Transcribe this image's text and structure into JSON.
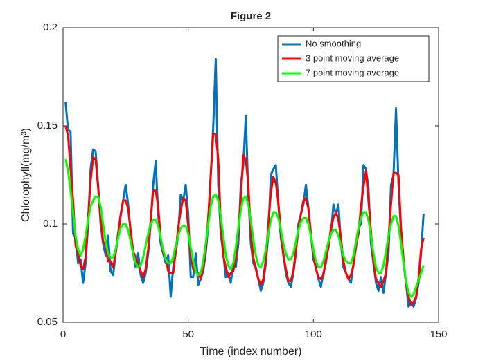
{
  "chart_data": {
    "type": "line",
    "title": "Figure 2",
    "xlabel": "Time (index number)",
    "ylabel": "Chlorophyll(mg/m³)",
    "xlim": [
      0,
      150
    ],
    "xticks": [
      0,
      50,
      100,
      150
    ],
    "ylim": [
      0.05,
      0.2
    ],
    "yticks": [
      0.05,
      0.1,
      0.15,
      0.2
    ],
    "grid": false,
    "legend_position": "top-right",
    "x": [
      1,
      2,
      3,
      4,
      5,
      6,
      7,
      8,
      9,
      10,
      11,
      12,
      13,
      14,
      15,
      16,
      17,
      18,
      19,
      20,
      21,
      22,
      23,
      24,
      25,
      26,
      27,
      28,
      29,
      30,
      31,
      32,
      33,
      34,
      35,
      36,
      37,
      38,
      39,
      40,
      41,
      42,
      43,
      44,
      45,
      46,
      47,
      48,
      49,
      50,
      51,
      52,
      53,
      54,
      55,
      56,
      57,
      58,
      59,
      60,
      61,
      62,
      63,
      64,
      65,
      66,
      67,
      68,
      69,
      70,
      71,
      72,
      73,
      74,
      75,
      76,
      77,
      78,
      79,
      80,
      81,
      82,
      83,
      84,
      85,
      86,
      87,
      88,
      89,
      90,
      91,
      92,
      93,
      94,
      95,
      96,
      97,
      98,
      99,
      100,
      101,
      102,
      103,
      104,
      105,
      106,
      107,
      108,
      109,
      110,
      111,
      112,
      113,
      114,
      115,
      116,
      117,
      118,
      119,
      120,
      121,
      122,
      123,
      124,
      125,
      126,
      127,
      128,
      129,
      130,
      131,
      132,
      133,
      134,
      135,
      136,
      137,
      138,
      139,
      140,
      141,
      142,
      143,
      144
    ],
    "series": [
      {
        "name": "No smoothing",
        "color": "#0072bd",
        "values": [
          0.162,
          0.148,
          0.147,
          0.095,
          0.093,
          0.08,
          0.082,
          0.07,
          0.08,
          0.1,
          0.128,
          0.138,
          0.137,
          0.12,
          0.1,
          0.09,
          0.084,
          0.094,
          0.076,
          0.074,
          0.085,
          0.095,
          0.105,
          0.112,
          0.12,
          0.11,
          0.095,
          0.085,
          0.078,
          0.085,
          0.074,
          0.07,
          0.075,
          0.085,
          0.1,
          0.12,
          0.132,
          0.105,
          0.09,
          0.085,
          0.08,
          0.084,
          0.063,
          0.078,
          0.085,
          0.095,
          0.115,
          0.112,
          0.12,
          0.105,
          0.073,
          0.073,
          0.085,
          0.069,
          0.072,
          0.076,
          0.085,
          0.1,
          0.125,
          0.15,
          0.184,
          0.12,
          0.095,
          0.085,
          0.073,
          0.075,
          0.07,
          0.08,
          0.078,
          0.09,
          0.12,
          0.13,
          0.155,
          0.115,
          0.09,
          0.08,
          0.078,
          0.072,
          0.066,
          0.07,
          0.08,
          0.095,
          0.125,
          0.128,
          0.13,
          0.11,
          0.093,
          0.085,
          0.075,
          0.07,
          0.068,
          0.075,
          0.085,
          0.1,
          0.105,
          0.11,
          0.12,
          0.108,
          0.095,
          0.082,
          0.078,
          0.072,
          0.068,
          0.075,
          0.08,
          0.09,
          0.095,
          0.11,
          0.105,
          0.11,
          0.09,
          0.078,
          0.075,
          0.072,
          0.07,
          0.08,
          0.088,
          0.098,
          0.1,
          0.13,
          0.128,
          0.118,
          0.09,
          0.08,
          0.07,
          0.066,
          0.073,
          0.065,
          0.075,
          0.085,
          0.12,
          0.125,
          0.159,
          0.12,
          0.095,
          0.08,
          0.07,
          0.058,
          0.06,
          0.058,
          0.062,
          0.07,
          0.085,
          0.105
        ]
      },
      {
        "name": "3 point moving average",
        "color": "#ff0000",
        "values": [
          0.15,
          0.145,
          0.128,
          0.112,
          0.089,
          0.085,
          0.079,
          0.077,
          0.083,
          0.103,
          0.122,
          0.134,
          0.133,
          0.119,
          0.103,
          0.091,
          0.089,
          0.081,
          0.081,
          0.078,
          0.085,
          0.095,
          0.104,
          0.112,
          0.112,
          0.108,
          0.097,
          0.086,
          0.083,
          0.079,
          0.076,
          0.073,
          0.077,
          0.087,
          0.102,
          0.117,
          0.117,
          0.109,
          0.093,
          0.085,
          0.083,
          0.076,
          0.075,
          0.075,
          0.086,
          0.098,
          0.107,
          0.113,
          0.112,
          0.099,
          0.084,
          0.077,
          0.076,
          0.075,
          0.072,
          0.078,
          0.087,
          0.103,
          0.125,
          0.146,
          0.146,
          0.133,
          0.1,
          0.084,
          0.078,
          0.073,
          0.075,
          0.076,
          0.083,
          0.096,
          0.113,
          0.135,
          0.133,
          0.12,
          0.095,
          0.083,
          0.077,
          0.072,
          0.069,
          0.072,
          0.082,
          0.1,
          0.116,
          0.124,
          0.121,
          0.111,
          0.096,
          0.084,
          0.077,
          0.071,
          0.071,
          0.076,
          0.087,
          0.097,
          0.105,
          0.112,
          0.113,
          0.108,
          0.095,
          0.085,
          0.077,
          0.073,
          0.072,
          0.074,
          0.082,
          0.088,
          0.098,
          0.103,
          0.106,
          0.102,
          0.093,
          0.081,
          0.075,
          0.072,
          0.074,
          0.079,
          0.089,
          0.095,
          0.109,
          0.119,
          0.127,
          0.112,
          0.096,
          0.08,
          0.072,
          0.07,
          0.068,
          0.071,
          0.075,
          0.093,
          0.11,
          0.126,
          0.126,
          0.125,
          0.098,
          0.082,
          0.07,
          0.063,
          0.059,
          0.06,
          0.063,
          0.072,
          0.087,
          0.093
        ]
      },
      {
        "name": "7 point moving average",
        "color": "#00ff00",
        "values": [
          0.133,
          0.127,
          0.117,
          0.106,
          0.094,
          0.087,
          0.084,
          0.087,
          0.094,
          0.102,
          0.109,
          0.112,
          0.114,
          0.114,
          0.109,
          0.1,
          0.091,
          0.085,
          0.083,
          0.083,
          0.087,
          0.093,
          0.098,
          0.1,
          0.1,
          0.097,
          0.091,
          0.085,
          0.08,
          0.078,
          0.079,
          0.083,
          0.089,
          0.095,
          0.1,
          0.102,
          0.102,
          0.099,
          0.093,
          0.087,
          0.082,
          0.08,
          0.08,
          0.083,
          0.089,
          0.094,
          0.098,
          0.099,
          0.099,
          0.095,
          0.088,
          0.081,
          0.076,
          0.074,
          0.075,
          0.081,
          0.09,
          0.1,
          0.109,
          0.114,
          0.115,
          0.112,
          0.104,
          0.094,
          0.084,
          0.079,
          0.077,
          0.08,
          0.088,
          0.098,
          0.107,
          0.113,
          0.114,
          0.11,
          0.102,
          0.092,
          0.084,
          0.079,
          0.078,
          0.081,
          0.087,
          0.095,
          0.102,
          0.106,
          0.106,
          0.103,
          0.097,
          0.09,
          0.085,
          0.082,
          0.082,
          0.085,
          0.091,
          0.097,
          0.101,
          0.103,
          0.103,
          0.1,
          0.094,
          0.087,
          0.081,
          0.078,
          0.078,
          0.081,
          0.086,
          0.091,
          0.095,
          0.097,
          0.097,
          0.094,
          0.089,
          0.084,
          0.081,
          0.08,
          0.08,
          0.084,
          0.091,
          0.098,
          0.103,
          0.106,
          0.106,
          0.102,
          0.094,
          0.085,
          0.078,
          0.075,
          0.075,
          0.079,
          0.086,
          0.094,
          0.1,
          0.104,
          0.104,
          0.099,
          0.09,
          0.08,
          0.071,
          0.065,
          0.063,
          0.064,
          0.068,
          0.071,
          0.075,
          0.079
        ]
      }
    ]
  }
}
